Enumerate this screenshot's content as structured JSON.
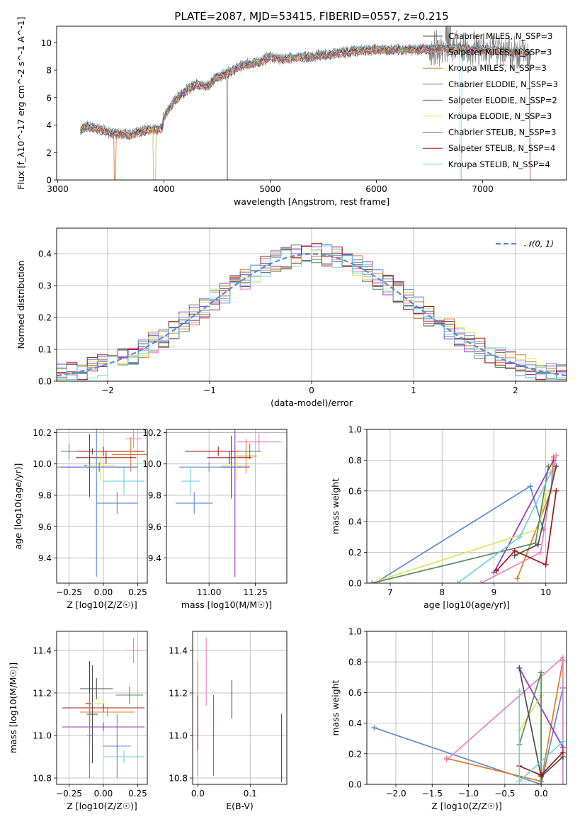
{
  "colors": {
    "chabrier_miles": "#4c4c4c",
    "salpeter_miles": "#e882c0",
    "kroupa_miles": "#e07b20",
    "chabrier_elodie": "#5a8a5a",
    "salpeter_elodie": "#9a30c0",
    "kroupa_elodie": "#d8e860",
    "chabrier_stelib": "#606060",
    "salpeter_stelib": "#a01818",
    "kroupa_stelib": "#70d0e0",
    "blue_model": "#5b88d8",
    "grid": "#b0b0b0"
  },
  "chart_data": [
    {
      "id": "spectrum",
      "type": "line",
      "title": "PLATE=2087, MJD=53415, FIBERID=0557, z=0.215",
      "xlabel": "wavelength [Angstrom, rest frame]",
      "ylabel": "Flux [f_λ10^-17 erg cm^-2 s^-1 A^-1]",
      "xlim": [
        2990,
        7790
      ],
      "ylim": [
        0,
        11.2
      ],
      "xticks": [
        "3000",
        "4000",
        "5000",
        "6000",
        "7000"
      ],
      "yticks": [
        "0",
        "2",
        "4",
        "6",
        "8",
        "10"
      ],
      "grid": false,
      "legend_position": "right",
      "legend": [
        "Chabrier MILES, N_SSP=3",
        "Salpeter MILES, N_SSP=3",
        "Kroupa MILES, N_SSP=3",
        "Chabrier ELODIE, N_SSP=3",
        "Salpeter ELODIE, N_SSP=2",
        "Kroupa ELODIE, N_SSP=3",
        "Chabrier STELIB, N_SSP=3",
        "Salpeter STELIB, N_SSP=4",
        "Kroupa STELIB, N_SSP=4"
      ],
      "continuum": {
        "x": [
          3210,
          3260,
          3400,
          3500,
          3600,
          3700,
          3800,
          3900,
          3980,
          4000,
          4100,
          4200,
          4300,
          4400,
          4500,
          4600,
          4700,
          4800,
          4900,
          5000,
          5100,
          5200,
          5400,
          5600,
          5800,
          6000,
          6200,
          6400,
          6600,
          6800,
          7000,
          7200,
          7400
        ],
        "y": [
          3.6,
          3.9,
          3.7,
          3.4,
          3.4,
          3.3,
          3.6,
          3.7,
          3.7,
          4.6,
          5.8,
          6.5,
          7.0,
          6.8,
          7.5,
          7.8,
          8.2,
          8.5,
          8.6,
          9.0,
          8.8,
          8.9,
          9.0,
          9.2,
          9.4,
          9.5,
          9.5,
          9.5,
          9.6,
          9.6,
          9.5,
          9.4,
          9.3
        ]
      }
    },
    {
      "id": "residuals",
      "type": "line",
      "xlabel": "(data-model)/error",
      "ylabel": "Normed distribution",
      "xlim": [
        -2.5,
        2.5
      ],
      "ylim": [
        0,
        0.48
      ],
      "xticks": [
        "−2",
        "−1",
        "0",
        "1",
        "2"
      ],
      "yticks": [
        "0.0",
        "0.1",
        "0.2",
        "0.3",
        "0.4"
      ],
      "grid": true,
      "legend": [
        "𝒩(0, 1)"
      ],
      "legend_position": "top-right",
      "gaussian": {
        "mu": 0,
        "sigma": 1
      }
    },
    {
      "id": "age_vs_Z",
      "type": "scatter",
      "xlabel": "Z [log10(Z/Z☉)]",
      "ylabel": "age  [log10(age/yr)]",
      "xlim": [
        -0.34,
        0.32
      ],
      "ylim": [
        9.24,
        10.22
      ],
      "xticks": [
        "−0.25",
        "0.00",
        "0.25"
      ],
      "yticks": [
        "9.4",
        "9.6",
        "9.8",
        "10.0",
        "10.2"
      ],
      "grid": true,
      "points": [
        {
          "x": 0.22,
          "y": 10.16,
          "xerr": 0.06,
          "yerr": 0.06
        },
        {
          "x": -0.08,
          "y": 10.08,
          "xerr": 0.05,
          "yerr": 0.02
        },
        {
          "x": 0.0,
          "y": 10.08,
          "xerr": 0.3,
          "yerr": 0.03
        },
        {
          "x": -0.25,
          "y": 10.08,
          "xerr": 0.06,
          "yerr": 0.05
        },
        {
          "x": 0.2,
          "y": 10.06,
          "xerr": 0.14,
          "yerr": 0.11
        },
        {
          "x": 0.02,
          "y": 10.04,
          "xerr": 0.22,
          "yerr": 0.04
        },
        {
          "x": -0.1,
          "y": 9.99,
          "xerr": 0.04,
          "yerr": 0.2
        },
        {
          "x": -0.03,
          "y": 9.98,
          "xerr": 0.28,
          "yerr": 0.03
        },
        {
          "x": -0.05,
          "y": 9.98,
          "xerr": 0.3,
          "yerr": 0.7
        },
        {
          "x": -0.02,
          "y": 9.99,
          "xerr": 0.1,
          "yerr": 0.1
        },
        {
          "x": 0.15,
          "y": 9.89,
          "xerr": 0.15,
          "yerr": 0.09
        },
        {
          "x": 0.1,
          "y": 9.75,
          "xerr": 0.15,
          "yerr": 0.07
        }
      ]
    },
    {
      "id": "age_vs_mass",
      "type": "scatter",
      "xlabel": "mass [log10(M/M☉)]",
      "ylabel": "",
      "xlim": [
        10.77,
        11.42
      ],
      "ylim": [
        9.24,
        10.22
      ],
      "xticks": [
        "11.00",
        "11.25"
      ],
      "yticks": [
        "9.4",
        "9.6",
        "9.8",
        "10.0",
        "10.2"
      ],
      "grid": true,
      "points": [
        {
          "x": 11.27,
          "y": 10.14,
          "xerr": 0.12,
          "yerr": 0.06
        },
        {
          "x": 11.2,
          "y": 10.08,
          "xerr": 0.05,
          "yerr": 0.02
        },
        {
          "x": 11.05,
          "y": 10.08,
          "xerr": 0.18,
          "yerr": 0.03
        },
        {
          "x": 11.22,
          "y": 10.08,
          "xerr": 0.06,
          "yerr": 0.05
        },
        {
          "x": 11.2,
          "y": 10.05,
          "xerr": 0.06,
          "yerr": 0.11
        },
        {
          "x": 11.11,
          "y": 10.04,
          "xerr": 0.12,
          "yerr": 0.04
        },
        {
          "x": 11.12,
          "y": 9.98,
          "xerr": 0.05,
          "yerr": 0.2
        },
        {
          "x": 11.14,
          "y": 9.98,
          "xerr": 0.08,
          "yerr": 0.7
        },
        {
          "x": 11.0,
          "y": 9.98,
          "xerr": 0.16,
          "yerr": 0.03
        },
        {
          "x": 11.15,
          "y": 9.99,
          "xerr": 0.08,
          "yerr": 0.1
        },
        {
          "x": 10.9,
          "y": 9.89,
          "xerr": 0.05,
          "yerr": 0.09
        },
        {
          "x": 10.92,
          "y": 9.75,
          "xerr": 0.1,
          "yerr": 0.07
        }
      ]
    },
    {
      "id": "weight_vs_age",
      "type": "line",
      "xlabel": "age  [log10(age/yr)]",
      "ylabel": "mass weight",
      "xlim": [
        6.55,
        10.4
      ],
      "ylim": [
        0,
        1.0
      ],
      "xticks": [
        "7",
        "8",
        "9",
        "10"
      ],
      "yticks": [
        "0.0",
        "0.2",
        "0.4",
        "0.6",
        "0.8",
        "1.0"
      ],
      "grid": true,
      "series": [
        {
          "color": "blue_model",
          "x": [
            6.8,
            9.7,
            9.95
          ],
          "y": [
            0.02,
            0.63,
            0.35
          ]
        },
        {
          "color": "kroupa_miles",
          "x": [
            9.45,
            10.1,
            10.15
          ],
          "y": [
            0.03,
            0.6,
            0.82
          ]
        },
        {
          "color": "salpeter_miles",
          "x": [
            8.75,
            9.9,
            10.2
          ],
          "y": [
            0.0,
            0.2,
            0.83
          ]
        },
        {
          "color": "salpeter_elodie",
          "x": [
            9.0,
            10.15
          ],
          "y": [
            0.07,
            0.8
          ]
        },
        {
          "color": "kroupa_elodie",
          "x": [
            6.8,
            9.85,
            10.0
          ],
          "y": [
            0.02,
            0.35,
            0.58
          ]
        },
        {
          "color": "chabrier_elodie",
          "x": [
            6.65,
            9.8,
            10.05
          ],
          "y": [
            0.0,
            0.26,
            0.76
          ]
        },
        {
          "color": "chabrier_miles",
          "x": [
            9.4,
            9.85,
            10.2
          ],
          "y": [
            0.18,
            0.25,
            0.76
          ]
        },
        {
          "color": "salpeter_stelib",
          "x": [
            9.05,
            9.4,
            10.0,
            10.2
          ],
          "y": [
            0.08,
            0.21,
            0.12,
            0.6
          ]
        },
        {
          "color": "kroupa_stelib",
          "x": [
            8.3,
            9.5,
            10.1
          ],
          "y": [
            0.0,
            0.3,
            0.72
          ]
        }
      ]
    },
    {
      "id": "mass_vs_Z",
      "type": "scatter",
      "xlabel": "Z [log10(Z/Z☉)]",
      "ylabel": "mass [log10(M/M☉)]",
      "xlim": [
        -0.34,
        0.32
      ],
      "ylim": [
        10.77,
        11.49
      ],
      "xticks": [
        "−0.25",
        "0.00",
        "0.25"
      ],
      "yticks": [
        "10.8",
        "11.0",
        "11.2",
        "11.4"
      ],
      "grid": true,
      "points": [
        {
          "x": 0.22,
          "y": 11.4,
          "xerr": 0.07,
          "yerr": 0.06
        },
        {
          "x": -0.05,
          "y": 11.22,
          "xerr": 0.12,
          "yerr": 0.05
        },
        {
          "x": 0.0,
          "y": 11.13,
          "xerr": 0.3,
          "yerr": 0.02
        },
        {
          "x": 0.19,
          "y": 11.19,
          "xerr": 0.1,
          "yerr": 0.04
        },
        {
          "x": 0.03,
          "y": 11.11,
          "xerr": 0.2,
          "yerr": 0.02
        },
        {
          "x": -0.1,
          "y": 11.15,
          "xerr": 0.03,
          "yerr": 0.2
        },
        {
          "x": -0.08,
          "y": 11.1,
          "xerr": 0.04,
          "yerr": 0.23
        },
        {
          "x": 0.0,
          "y": 11.04,
          "xerr": 0.3,
          "yerr": 0.02
        },
        {
          "x": -0.1,
          "y": 11.0,
          "xerr": 0.02,
          "yerr": 0.2
        },
        {
          "x": -0.04,
          "y": 11.15,
          "xerr": 0.05,
          "yerr": 0.04
        },
        {
          "x": 0.15,
          "y": 10.9,
          "xerr": 0.15,
          "yerr": 0.03
        },
        {
          "x": 0.1,
          "y": 10.95,
          "xerr": 0.1,
          "yerr": 0.15
        }
      ]
    },
    {
      "id": "mass_vs_ebv",
      "type": "scatter",
      "xlabel": "E(B-V)",
      "ylabel": "",
      "xlim": [
        -0.01,
        0.17
      ],
      "ylim": [
        10.77,
        11.49
      ],
      "xticks": [
        "0.0",
        "0.1"
      ],
      "yticks": [
        "10.8",
        "11.0",
        "11.2",
        "11.4"
      ],
      "grid": true,
      "points": [
        {
          "x": 0.016,
          "y": 11.3,
          "xerr": 0,
          "yerr": 0.16
        },
        {
          "x": 0.065,
          "y": 11.17,
          "xerr": 0,
          "yerr": 0.09
        },
        {
          "x": 0.03,
          "y": 11.1,
          "xerr": 0,
          "yerr": 0.06
        },
        {
          "x": 0.03,
          "y": 11.0,
          "xerr": 0,
          "yerr": 0.19
        },
        {
          "x": 0.0,
          "y": 11.08,
          "xerr": 0,
          "yerr": 0.27
        },
        {
          "x": 0.0,
          "y": 11.06,
          "xerr": 0,
          "yerr": 0.13
        },
        {
          "x": 0.16,
          "y": 10.94,
          "xerr": 0,
          "yerr": 0.16
        }
      ]
    },
    {
      "id": "weight_vs_Z",
      "type": "line",
      "xlabel": "Z [log10(Z/Z☉)]",
      "ylabel": "mass weight",
      "xlim": [
        -2.4,
        0.35
      ],
      "ylim": [
        0,
        1.0
      ],
      "xticks": [
        "−2.0",
        "−1.5",
        "−1.0",
        "−0.5",
        "0.0"
      ],
      "yticks": [
        "0.0",
        "0.2",
        "0.4",
        "0.6",
        "0.8",
        "1.0"
      ],
      "grid": true,
      "series": [
        {
          "color": "blue_model",
          "x": [
            -2.3,
            0.0,
            0.3
          ],
          "y": [
            0.37,
            0.0,
            0.63
          ]
        },
        {
          "color": "kroupa_miles",
          "x": [
            -1.3,
            0.0,
            0.3
          ],
          "y": [
            0.17,
            0.02,
            0.81
          ]
        },
        {
          "color": "salpeter_miles",
          "x": [
            -1.3,
            0.3,
            0.3
          ],
          "y": [
            0.16,
            0.83,
            0.0
          ]
        },
        {
          "color": "salpeter_elodie",
          "x": [
            -0.3,
            0.3
          ],
          "y": [
            0.76,
            0.24
          ]
        },
        {
          "color": "kroupa_elodie",
          "x": [
            -0.3,
            0.0,
            0.0
          ],
          "y": [
            0.35,
            0.58,
            0.0
          ]
        },
        {
          "color": "chabrier_elodie",
          "x": [
            -0.3,
            0.0,
            0.0
          ],
          "y": [
            0.26,
            0.73,
            0.0
          ]
        },
        {
          "color": "chabrier_miles",
          "x": [
            -0.3,
            0.0,
            0.3
          ],
          "y": [
            0.76,
            0.05,
            0.18
          ]
        },
        {
          "color": "salpeter_stelib",
          "x": [
            -0.3,
            0.0,
            0.3
          ],
          "y": [
            0.12,
            0.06,
            0.21
          ]
        },
        {
          "color": "kroupa_stelib",
          "x": [
            -0.3,
            -0.3,
            0.3
          ],
          "y": [
            0.61,
            0.02,
            0.28
          ]
        }
      ]
    }
  ]
}
